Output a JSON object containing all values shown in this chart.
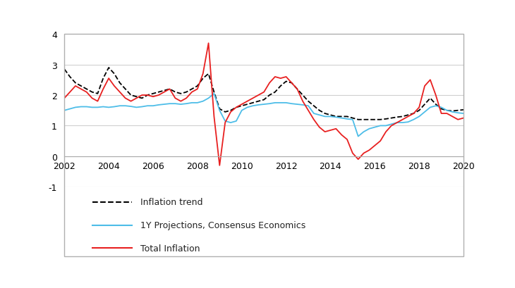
{
  "xlim": [
    2002,
    2020
  ],
  "ylim": [
    -1,
    4
  ],
  "yticks": [
    -1,
    0,
    1,
    2,
    3,
    4
  ],
  "xticks": [
    2002,
    2004,
    2006,
    2008,
    2010,
    2012,
    2014,
    2016,
    2018,
    2020
  ],
  "background_color": "#ffffff",
  "grid_color": "#d0d0d0",
  "inflation_trend_x": [
    2002.0,
    2002.25,
    2002.5,
    2002.75,
    2003.0,
    2003.25,
    2003.5,
    2003.75,
    2004.0,
    2004.25,
    2004.5,
    2004.75,
    2005.0,
    2005.25,
    2005.5,
    2005.75,
    2006.0,
    2006.25,
    2006.5,
    2006.75,
    2007.0,
    2007.25,
    2007.5,
    2007.75,
    2008.0,
    2008.25,
    2008.5,
    2008.75,
    2009.0,
    2009.25,
    2009.5,
    2009.75,
    2010.0,
    2010.25,
    2010.5,
    2010.75,
    2011.0,
    2011.25,
    2011.5,
    2011.75,
    2012.0,
    2012.25,
    2012.5,
    2012.75,
    2013.0,
    2013.25,
    2013.5,
    2013.75,
    2014.0,
    2014.25,
    2014.5,
    2014.75,
    2015.0,
    2015.25,
    2015.5,
    2015.75,
    2016.0,
    2016.25,
    2016.5,
    2016.75,
    2017.0,
    2017.25,
    2017.5,
    2017.75,
    2018.0,
    2018.25,
    2018.5,
    2018.75,
    2019.0,
    2019.25,
    2019.5,
    2019.75,
    2020.0
  ],
  "inflation_trend_y": [
    2.85,
    2.6,
    2.4,
    2.3,
    2.2,
    2.1,
    2.05,
    2.55,
    2.9,
    2.7,
    2.4,
    2.2,
    2.0,
    1.95,
    1.9,
    2.0,
    2.05,
    2.1,
    2.15,
    2.2,
    2.1,
    2.05,
    2.1,
    2.2,
    2.3,
    2.55,
    2.7,
    2.1,
    1.55,
    1.45,
    1.5,
    1.6,
    1.65,
    1.7,
    1.75,
    1.8,
    1.85,
    2.0,
    2.1,
    2.3,
    2.45,
    2.4,
    2.2,
    2.0,
    1.8,
    1.65,
    1.5,
    1.4,
    1.35,
    1.3,
    1.3,
    1.3,
    1.25,
    1.2,
    1.2,
    1.2,
    1.2,
    1.2,
    1.22,
    1.25,
    1.28,
    1.3,
    1.35,
    1.4,
    1.5,
    1.7,
    1.9,
    1.7,
    1.55,
    1.5,
    1.48,
    1.5,
    1.52
  ],
  "consensus_x": [
    2002.0,
    2002.25,
    2002.5,
    2002.75,
    2003.0,
    2003.25,
    2003.5,
    2003.75,
    2004.0,
    2004.25,
    2004.5,
    2004.75,
    2005.0,
    2005.25,
    2005.5,
    2005.75,
    2006.0,
    2006.25,
    2006.5,
    2006.75,
    2007.0,
    2007.25,
    2007.5,
    2007.75,
    2008.0,
    2008.25,
    2008.5,
    2008.75,
    2009.0,
    2009.25,
    2009.5,
    2009.75,
    2010.0,
    2010.25,
    2010.5,
    2010.75,
    2011.0,
    2011.25,
    2011.5,
    2011.75,
    2012.0,
    2012.25,
    2012.5,
    2012.75,
    2013.0,
    2013.25,
    2013.5,
    2013.75,
    2014.0,
    2014.25,
    2014.5,
    2014.75,
    2015.0,
    2015.25,
    2015.5,
    2015.75,
    2016.0,
    2016.25,
    2016.5,
    2016.75,
    2017.0,
    2017.25,
    2017.5,
    2017.75,
    2018.0,
    2018.25,
    2018.5,
    2018.75,
    2019.0,
    2019.25,
    2019.5,
    2019.75,
    2020.0
  ],
  "consensus_y": [
    1.5,
    1.55,
    1.6,
    1.62,
    1.62,
    1.6,
    1.6,
    1.62,
    1.6,
    1.62,
    1.65,
    1.65,
    1.63,
    1.6,
    1.62,
    1.65,
    1.65,
    1.68,
    1.7,
    1.72,
    1.72,
    1.7,
    1.72,
    1.75,
    1.75,
    1.8,
    1.9,
    2.05,
    1.5,
    1.15,
    1.1,
    1.15,
    1.5,
    1.6,
    1.65,
    1.68,
    1.7,
    1.72,
    1.75,
    1.75,
    1.75,
    1.72,
    1.7,
    1.68,
    1.65,
    1.4,
    1.35,
    1.3,
    1.3,
    1.28,
    1.25,
    1.22,
    1.2,
    0.65,
    0.8,
    0.9,
    0.95,
    1.0,
    1.0,
    1.05,
    1.1,
    1.1,
    1.12,
    1.2,
    1.3,
    1.45,
    1.6,
    1.65,
    1.6,
    1.5,
    1.45,
    1.42,
    1.4
  ],
  "total_inflation_x": [
    2002.0,
    2002.25,
    2002.5,
    2002.75,
    2003.0,
    2003.25,
    2003.5,
    2003.75,
    2004.0,
    2004.25,
    2004.5,
    2004.75,
    2005.0,
    2005.25,
    2005.5,
    2005.75,
    2006.0,
    2006.25,
    2006.5,
    2006.75,
    2007.0,
    2007.25,
    2007.5,
    2007.75,
    2008.0,
    2008.25,
    2008.5,
    2008.75,
    2009.0,
    2009.25,
    2009.5,
    2009.75,
    2010.0,
    2010.25,
    2010.5,
    2010.75,
    2011.0,
    2011.25,
    2011.5,
    2011.75,
    2012.0,
    2012.25,
    2012.5,
    2012.75,
    2013.0,
    2013.25,
    2013.5,
    2013.75,
    2014.0,
    2014.25,
    2014.5,
    2014.75,
    2015.0,
    2015.25,
    2015.5,
    2015.75,
    2016.0,
    2016.25,
    2016.5,
    2016.75,
    2017.0,
    2017.25,
    2017.5,
    2017.75,
    2018.0,
    2018.25,
    2018.5,
    2018.75,
    2019.0,
    2019.25,
    2019.5,
    2019.75,
    2020.0
  ],
  "total_inflation_y": [
    1.9,
    2.1,
    2.3,
    2.2,
    2.1,
    1.9,
    1.8,
    2.2,
    2.55,
    2.3,
    2.1,
    1.9,
    1.8,
    1.9,
    2.0,
    2.0,
    1.95,
    2.0,
    2.1,
    2.2,
    1.9,
    1.8,
    1.9,
    2.1,
    2.2,
    2.7,
    3.7,
    1.3,
    -0.3,
    1.1,
    1.45,
    1.6,
    1.7,
    1.8,
    1.9,
    2.0,
    2.1,
    2.4,
    2.6,
    2.55,
    2.6,
    2.4,
    2.2,
    1.8,
    1.5,
    1.2,
    0.95,
    0.8,
    0.85,
    0.9,
    0.7,
    0.55,
    0.1,
    -0.1,
    0.1,
    0.2,
    0.35,
    0.5,
    0.8,
    1.0,
    1.1,
    1.2,
    1.3,
    1.4,
    1.6,
    2.3,
    2.5,
    2.0,
    1.4,
    1.4,
    1.3,
    1.2,
    1.25
  ],
  "trend_color": "#000000",
  "consensus_color": "#4dbde8",
  "total_color": "#e82020",
  "legend_labels": [
    "Inflation trend",
    "1Y Projections, Consensus Economics",
    "Total Inflation"
  ],
  "outer_box_color": "#b0b0b0",
  "figure_width": 7.3,
  "figure_height": 4.1
}
